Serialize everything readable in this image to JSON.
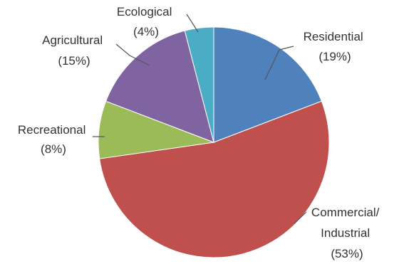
{
  "chart_data": {
    "type": "pie",
    "title": "",
    "slices": [
      {
        "name": "Residential",
        "label_lines": [
          "Residential",
          "(19%)"
        ],
        "value": 19,
        "color": "#4F81BD"
      },
      {
        "name": "Commercial/ Industrial",
        "label_lines": [
          "Commercial/",
          "Industrial",
          "(53%)"
        ],
        "value": 53,
        "color": "#C0504D"
      },
      {
        "name": "Recreational",
        "label_lines": [
          "Recreational",
          "(8%)"
        ],
        "value": 8,
        "color": "#9BBB59"
      },
      {
        "name": "Agricultural",
        "label_lines": [
          "Agricultural",
          "(15%)"
        ],
        "value": 15,
        "color": "#8064A2"
      },
      {
        "name": "Ecological",
        "label_lines": [
          "Ecological",
          "(4%)"
        ],
        "value": 4,
        "color": "#4BACC6"
      }
    ],
    "start_angle": "12 o'clock",
    "direction": "clockwise",
    "legend": "none"
  }
}
